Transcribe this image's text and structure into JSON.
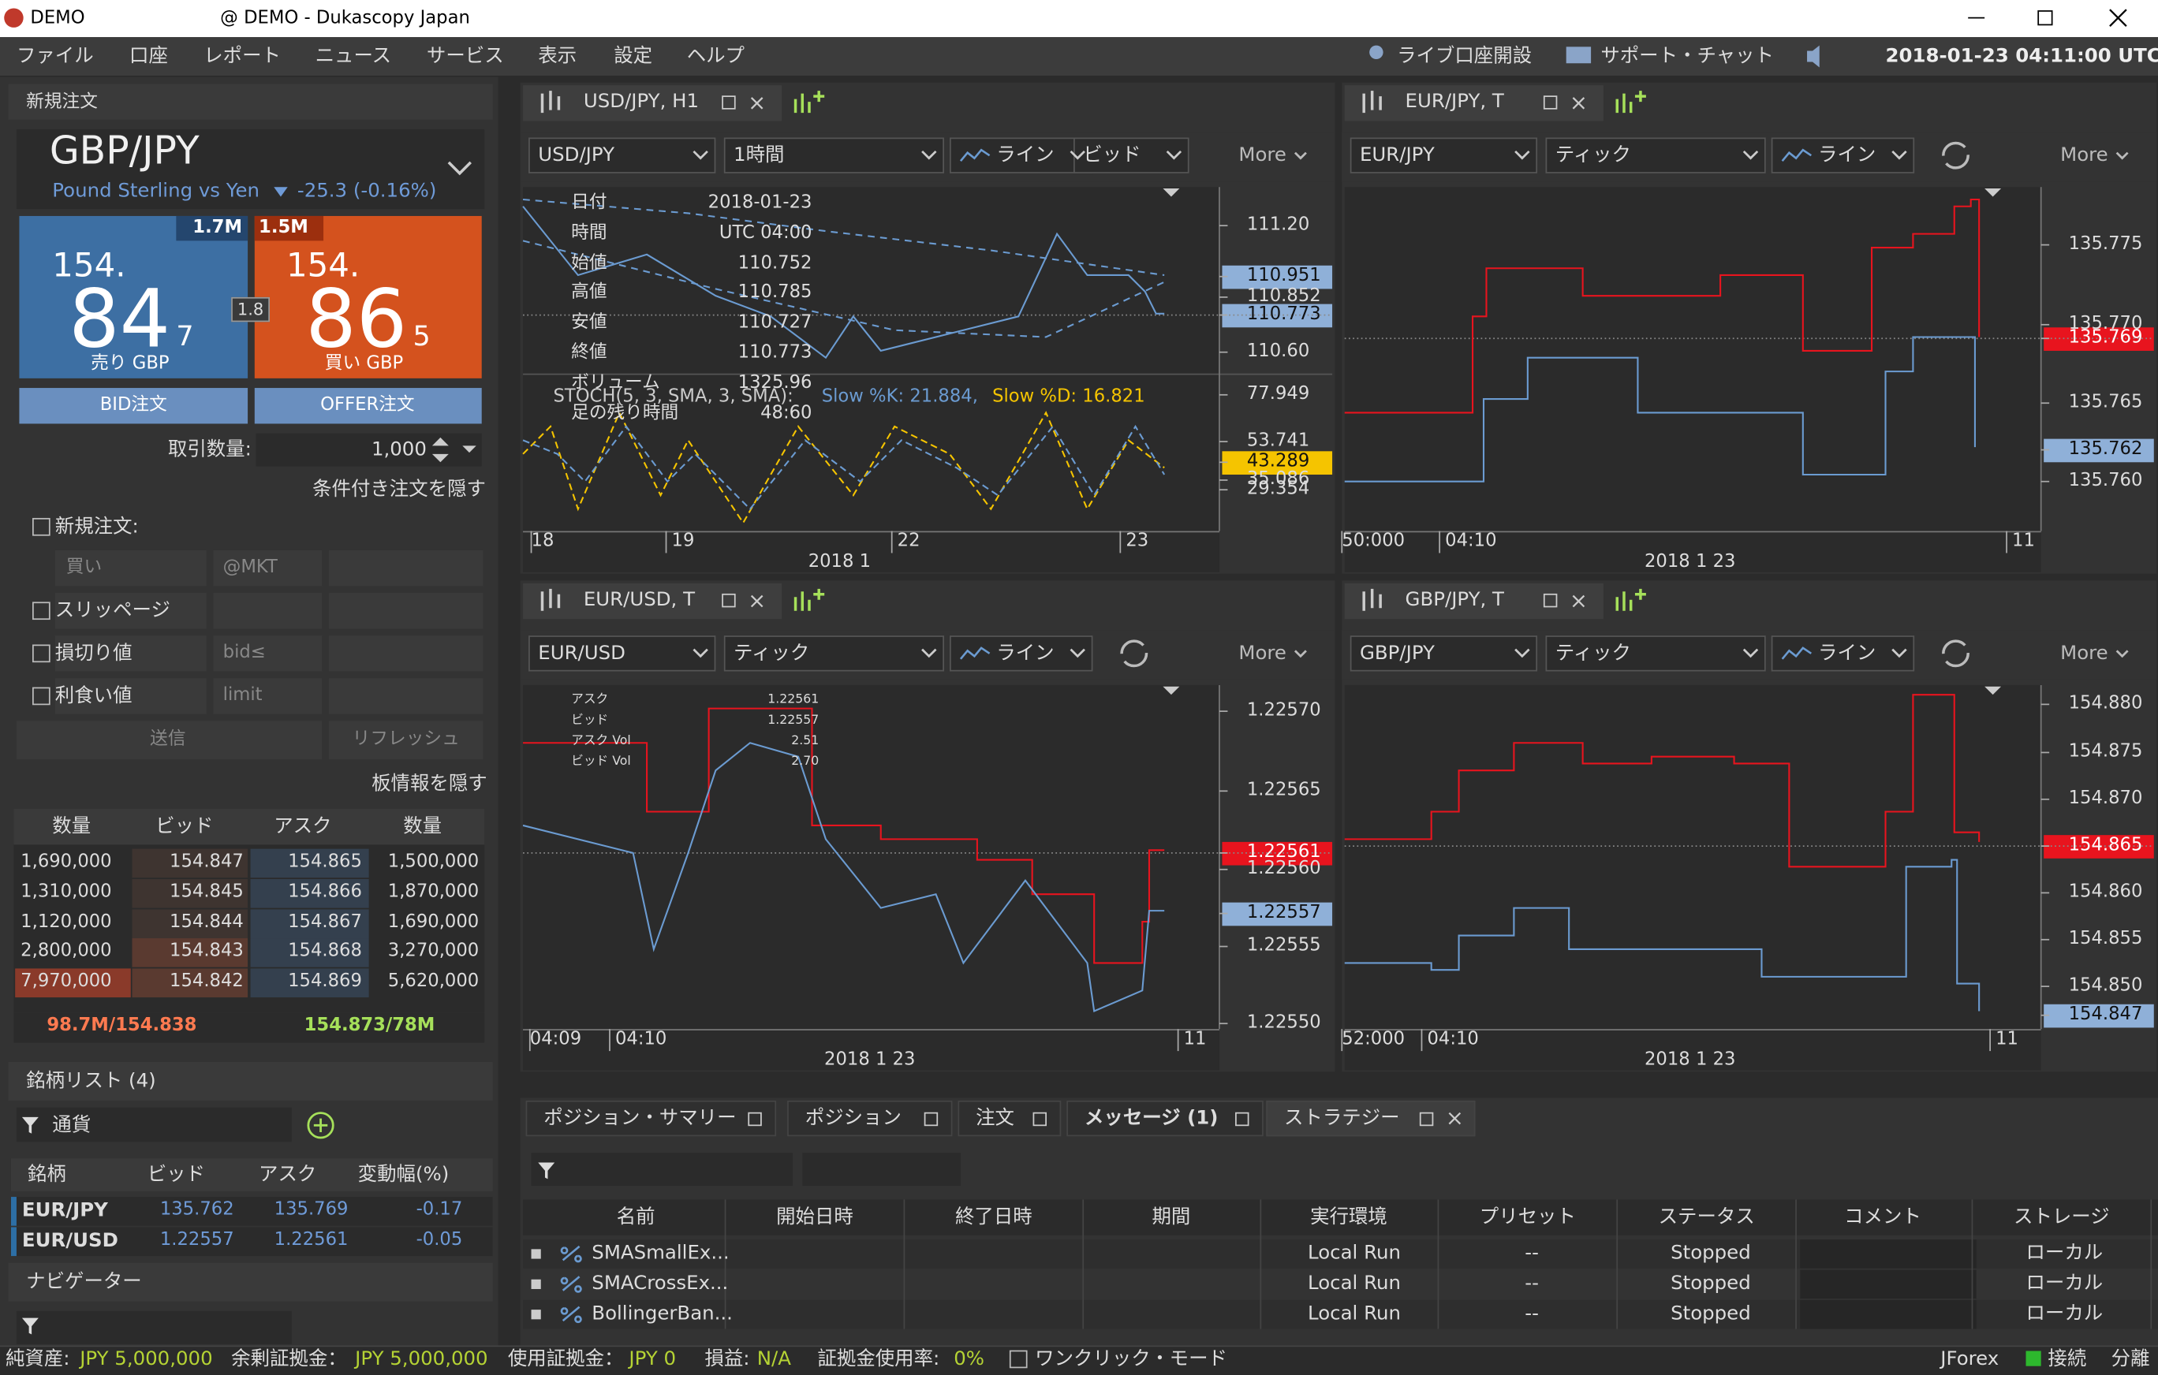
{
  "window": {
    "app": "DEMO",
    "title": "@ DEMO - Dukascopy Japan"
  },
  "menu": [
    "ファイル",
    "口座",
    "レポート",
    "ニュース",
    "サービス",
    "表示",
    "設定",
    "ヘルプ"
  ],
  "toolbar": {
    "live": "ライブ口座開設",
    "support": "サポート・チャット",
    "clock": "2018-01-23 04:11:00 UTC"
  },
  "order": {
    "title": "新規注文",
    "symbol": "GBP/JPY",
    "description": "Pound Sterling vs Yen",
    "change": "-25.3 (-0.16%)",
    "sell": {
      "volume": "1.7M",
      "big": "154.",
      "pips": "84",
      "pipette": "7",
      "label": "売り GBP"
    },
    "buy": {
      "volume": "1.5M",
      "big": "154.",
      "pips": "86",
      "pipette": "5",
      "label": "買い GBP"
    },
    "spread": "1.8",
    "bid_button": "BID注文",
    "offer_button": "OFFER注文",
    "amount_label": "取引数量:",
    "amount": "1,000",
    "hide_conditional": "条件付き注文を隠す",
    "conditional": {
      "new_order": "新規注文:",
      "side": "買い",
      "market": "@MKT",
      "slippage": "スリッページ",
      "stop_loss": "損切り値",
      "stop_cond": "bid≤",
      "take_profit": "利食い値",
      "tp_cond": "limit",
      "send": "送信",
      "refresh": "リフレッシュ"
    },
    "hide_depth": "板情報を隠す",
    "depth": {
      "columns": [
        "数量",
        "ビッド",
        "アスク",
        "数量"
      ],
      "rows": [
        [
          "1,690,000",
          "154.847",
          "154.865",
          "1,500,000"
        ],
        [
          "1,310,000",
          "154.845",
          "154.866",
          "1,870,000"
        ],
        [
          "1,120,000",
          "154.844",
          "154.867",
          "1,690,000"
        ],
        [
          "2,800,000",
          "154.843",
          "154.868",
          "3,270,000"
        ],
        [
          "7,970,000",
          "154.842",
          "154.869",
          "5,620,000"
        ]
      ],
      "bid_total": "98.7M/154.838",
      "ask_total": "154.873/78M"
    }
  },
  "instruments": {
    "title": "銘柄リスト (4)",
    "filter": "通貨",
    "columns": [
      "銘柄",
      "ビッド",
      "アスク",
      "変動幅(%)"
    ],
    "rows": [
      [
        "EUR/JPY",
        "135.762",
        "135.769",
        "-0.17"
      ],
      [
        "EUR/USD",
        "1.22557",
        "1.22561",
        "-0.05"
      ]
    ]
  },
  "navigator": {
    "title": "ナビゲーター"
  },
  "charts": [
    {
      "tab": "USD/JPY, H1",
      "controls": [
        "USD/JPY",
        "1時間",
        "ライン",
        "ビッド"
      ],
      "more": "More",
      "info": [
        [
          "日付",
          "2018-01-23"
        ],
        [
          "時間",
          "UTC 04:00"
        ],
        [
          "始値",
          "110.752"
        ],
        [
          "高値",
          "110.785"
        ],
        [
          "安値",
          "110.727"
        ],
        [
          "終値",
          "110.773"
        ],
        [
          "ボリューム",
          "1325.96"
        ],
        [
          "足の残り時間",
          "48:60"
        ]
      ],
      "indicator": [
        "STOCH(5, 3, SMA, 3, SMA):",
        "Slow %K: 21.884,",
        "Slow %D: 16.821"
      ],
      "yaxis": [
        "111.20",
        "110.951",
        "110.852",
        "110.773",
        "110.60",
        "77.949",
        "53.741",
        "43.289",
        "35.086",
        "29.354"
      ],
      "xaxis": [
        "18",
        "19",
        "22",
        "23"
      ],
      "date": "2018 1"
    },
    {
      "tab": "EUR/JPY, T",
      "controls": [
        "EUR/JPY",
        "ティック",
        "ライン"
      ],
      "more": "More",
      "yaxis": [
        "135.775",
        "135.770",
        "135.769",
        "135.765",
        "135.762",
        "135.760"
      ],
      "xaxis": [
        "50:000",
        "04:10",
        "11"
      ],
      "date": "2018 1 23"
    },
    {
      "tab": "EUR/USD, T",
      "controls": [
        "EUR/USD",
        "ティック",
        "ライン"
      ],
      "more": "More",
      "info": [
        [
          "アスク",
          "1.22561"
        ],
        [
          "ビッド",
          "1.22557"
        ],
        [
          "アスク Vol",
          "2.51"
        ],
        [
          "ビッド Vol",
          "2.70"
        ]
      ],
      "yaxis": [
        "1.22570",
        "1.22565",
        "1.22561",
        "1.22560",
        "1.22557",
        "1.22555",
        "1.22550"
      ],
      "xaxis": [
        "04:09",
        "04:10",
        "11"
      ],
      "date": "2018 1 23"
    },
    {
      "tab": "GBP/JPY, T",
      "controls": [
        "GBP/JPY",
        "ティック",
        "ライン"
      ],
      "more": "More",
      "yaxis": [
        "154.880",
        "154.875",
        "154.870",
        "154.865",
        "154.860",
        "154.855",
        "154.850",
        "154.847"
      ],
      "xaxis": [
        "52:000",
        "04:10",
        "11"
      ],
      "date": "2018 1 23"
    }
  ],
  "bottom": {
    "tabs": [
      "ポジション・サマリー",
      "ポジション",
      "注文",
      "メッセージ (1)",
      "ストラテジー"
    ],
    "columns": [
      "名前",
      "開始日時",
      "終了日時",
      "期間",
      "実行環境",
      "プリセット",
      "ステータス",
      "コメント",
      "ストレージ"
    ],
    "rows": [
      {
        "name": "SMASmallEx...",
        "env": "Local Run",
        "preset": "--",
        "status": "Stopped",
        "storage": "ローカル"
      },
      {
        "name": "SMACrossEx...",
        "env": "Local Run",
        "preset": "--",
        "status": "Stopped",
        "storage": "ローカル"
      },
      {
        "name": "BollingerBan...",
        "env": "Local Run",
        "preset": "--",
        "status": "Stopped",
        "storage": "ローカル"
      }
    ]
  },
  "status": {
    "equity_label": "純資産:",
    "equity": "JPY 5,000,000",
    "free_label": "余剰証拠金：",
    "free": "JPY 5,000,000",
    "used_label": "使用証拠金：",
    "used": "JPY 0",
    "pl_label": "損益:",
    "pl": "N/A",
    "usage_label": "証拠金使用率:",
    "usage": "0%",
    "one_click": "ワンクリック・モード",
    "platform": "JForex",
    "connection": "接続",
    "detach": "分離"
  }
}
